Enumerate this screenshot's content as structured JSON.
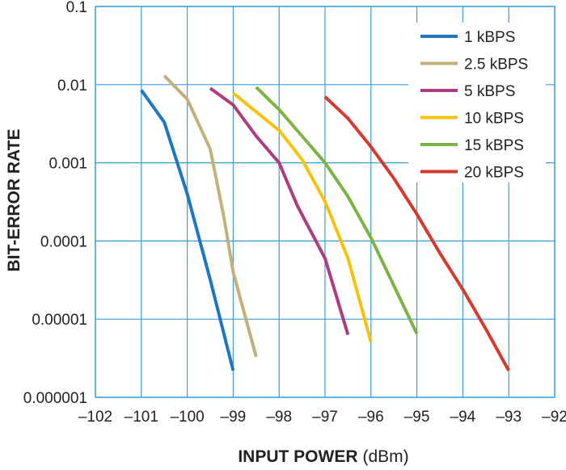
{
  "chart_data": {
    "type": "line",
    "xlabel": "INPUT POWER",
    "xlabel_unit": "(dBm)",
    "ylabel": "BIT-ERROR RATE",
    "xlim": [
      -102,
      -92
    ],
    "ylim": [
      1e-06,
      0.1
    ],
    "yscale": "log",
    "grid": true,
    "legend_position": "top-right",
    "x_ticks": [
      -102,
      -101,
      -100,
      -99,
      -98,
      -97,
      -96,
      -95,
      -94,
      -93,
      -92
    ],
    "x_tick_labels": [
      "–102",
      "–101",
      "–100",
      "–99",
      "–98",
      "–97",
      "–96",
      "–95",
      "–94",
      "–93",
      "–92"
    ],
    "y_ticks": [
      0.1,
      0.01,
      0.001,
      0.0001,
      1e-05,
      1e-06
    ],
    "y_tick_labels": [
      "0.1",
      "0.01",
      "0.001",
      "0.0001",
      "0.00001",
      "0.000001"
    ],
    "series": [
      {
        "name": "1 kBPS",
        "color": "#1f77c4",
        "points": [
          [
            -101,
            0.0085
          ],
          [
            -100.5,
            0.0033
          ],
          [
            -100,
            0.0004
          ],
          [
            -99.5,
            3.2e-05
          ],
          [
            -99,
            2.2e-06
          ]
        ]
      },
      {
        "name": "2.5 kBPS",
        "color": "#c4b07a",
        "points": [
          [
            -100.5,
            0.013
          ],
          [
            -100,
            0.0065
          ],
          [
            -99.5,
            0.0015
          ],
          [
            -99.2,
            0.0002
          ],
          [
            -99,
            4e-05
          ],
          [
            -98.5,
            3.3e-06
          ]
        ]
      },
      {
        "name": "5 kBPS",
        "color": "#b03c80",
        "points": [
          [
            -99.5,
            0.009
          ],
          [
            -99,
            0.0055
          ],
          [
            -98.5,
            0.0022
          ],
          [
            -98,
            0.001
          ],
          [
            -97.6,
            0.00028
          ],
          [
            -97,
            6e-05
          ],
          [
            -96.5,
            6.3e-06
          ]
        ]
      },
      {
        "name": "10 kBPS",
        "color": "#f8c20c",
        "points": [
          [
            -99,
            0.0078
          ],
          [
            -98.5,
            0.0045
          ],
          [
            -98,
            0.0026
          ],
          [
            -97.5,
            0.0011
          ],
          [
            -97,
            0.00032
          ],
          [
            -96.5,
            6e-05
          ],
          [
            -96,
            5.1e-06
          ]
        ]
      },
      {
        "name": "15 kBPS",
        "color": "#7cb342",
        "points": [
          [
            -98.5,
            0.0093
          ],
          [
            -98,
            0.0048
          ],
          [
            -97.5,
            0.0022
          ],
          [
            -97,
            0.001
          ],
          [
            -96.5,
            0.00037
          ],
          [
            -96,
            0.00011
          ],
          [
            -95,
            6.5e-06
          ]
        ]
      },
      {
        "name": "20 kBPS",
        "color": "#d63a2e",
        "points": [
          [
            -97,
            0.007
          ],
          [
            -96.5,
            0.0037
          ],
          [
            -96,
            0.0016
          ],
          [
            -95.5,
            0.00063
          ],
          [
            -95,
            0.00022
          ],
          [
            -94.5,
            7e-05
          ],
          [
            -94,
            2.4e-05
          ],
          [
            -93.5,
            7.5e-06
          ],
          [
            -93,
            2.2e-06
          ]
        ]
      }
    ]
  }
}
